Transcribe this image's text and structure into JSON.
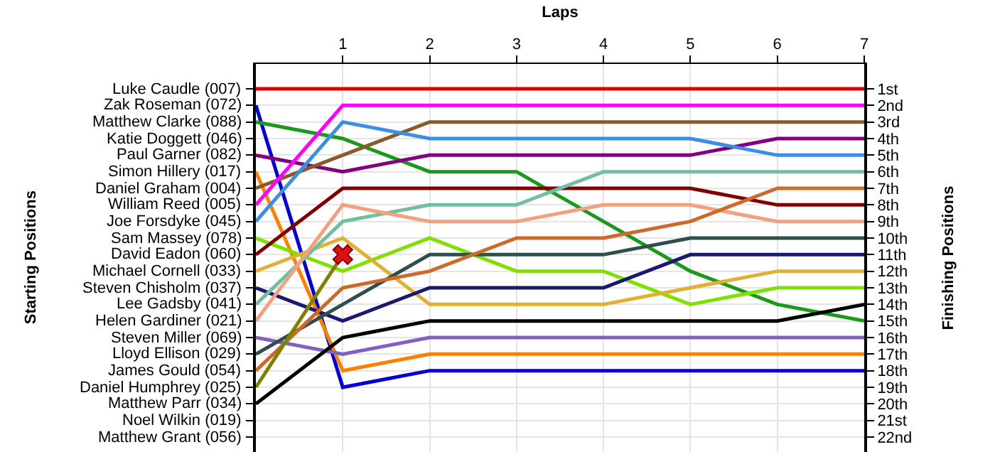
{
  "chart_data": {
    "type": "line",
    "xlabel": "Laps",
    "ylabel": "Finishing Positions",
    "x": [
      0,
      1,
      2,
      3,
      4,
      5,
      6,
      7
    ],
    "xlim": [
      0,
      7
    ],
    "xticks": [
      1,
      2,
      3,
      4,
      5,
      6,
      7
    ],
    "ylim": [
      22.9,
      -0.5
    ],
    "grid": true,
    "marker": "none",
    "line_style": "solid",
    "yticks": [
      {
        "value": 1,
        "label": "1st"
      },
      {
        "value": 2,
        "label": "2nd"
      },
      {
        "value": 3,
        "label": "3rd"
      },
      {
        "value": 4,
        "label": "4th"
      },
      {
        "value": 5,
        "label": "5th"
      },
      {
        "value": 6,
        "label": "6th"
      },
      {
        "value": 7,
        "label": "7th"
      },
      {
        "value": 8,
        "label": "8th"
      },
      {
        "value": 9,
        "label": "9th"
      },
      {
        "value": 10,
        "label": "10th"
      },
      {
        "value": 11,
        "label": "11th"
      },
      {
        "value": 12,
        "label": "12th"
      },
      {
        "value": 13,
        "label": "13th"
      },
      {
        "value": 14,
        "label": "14th"
      },
      {
        "value": 15,
        "label": "15th"
      },
      {
        "value": 16,
        "label": "16th"
      },
      {
        "value": 17,
        "label": "17th"
      },
      {
        "value": 18,
        "label": "18th"
      },
      {
        "value": 19,
        "label": "19th"
      },
      {
        "value": 20,
        "label": "20th"
      },
      {
        "value": 21,
        "label": "21st"
      },
      {
        "value": 22,
        "label": "22nd"
      }
    ],
    "annotations": [
      "Starting Positions",
      "Luke Caudle (007)",
      "Zak Roseman (072)",
      "Matthew Clarke (088)",
      "Katie Doggett (046)",
      "Paul Garner (082)",
      "Simon Hillery (017)",
      "Daniel Graham (004)",
      "William Reed (005)",
      "Joe Forsdyke (045)",
      "Sam Massey (078)",
      "David Eadon (060)",
      "Michael Cornell (033)",
      "Steven Chisholm (037)",
      "Lee Gadsby (041)",
      "Helen Gardiner (021)",
      "Steven Miller (069)",
      "Lloyd Ellison (029)",
      "James Gould (054)",
      "Daniel Humphrey (025)",
      "Matthew Parr (034)",
      "Noel Wilkin (019)",
      "Matthew Grant (056)"
    ],
    "series": [
      {
        "color": "#e00000",
        "values": [
          1,
          1,
          1,
          1,
          1,
          1,
          1,
          1
        ]
      },
      {
        "color": "#0000dd",
        "values": [
          2,
          19,
          18,
          18,
          18,
          18,
          18,
          18
        ]
      },
      {
        "color": "#1a9a1a",
        "values": [
          3,
          4,
          6,
          6,
          9,
          12,
          14,
          15
        ]
      },
      {
        "color": "#800080",
        "values": [
          5,
          6,
          5,
          5,
          5,
          5,
          4,
          4
        ]
      },
      {
        "color": "#ff8000",
        "values": [
          6,
          18,
          17,
          17,
          17,
          17,
          17,
          17
        ]
      },
      {
        "color": "#8b5a2b",
        "values": [
          7,
          5,
          3,
          3,
          3,
          3,
          3,
          3
        ]
      },
      {
        "color": "#ff00ff",
        "values": [
          8,
          2,
          2,
          2,
          2,
          2,
          2,
          2
        ]
      },
      {
        "color": "#3a8ee6",
        "values": [
          9,
          3,
          4,
          4,
          4,
          4,
          5,
          5
        ]
      },
      {
        "color": "#80e000",
        "values": [
          10,
          12,
          10,
          12,
          12,
          14,
          13,
          13
        ]
      },
      {
        "color": "#800000",
        "values": [
          11,
          7,
          7,
          7,
          7,
          7,
          8,
          8
        ]
      },
      {
        "color": "#e0b030",
        "values": [
          12,
          10,
          14,
          14,
          14,
          13,
          12,
          12
        ]
      },
      {
        "color": "#191970",
        "values": [
          13,
          15,
          13,
          13,
          13,
          11,
          11,
          11
        ]
      },
      {
        "color": "#6fbfa0",
        "values": [
          14,
          9,
          8,
          8,
          6,
          6,
          6,
          6
        ]
      },
      {
        "color": "#f4a080",
        "values": [
          15,
          8,
          9,
          9,
          8,
          8,
          9,
          9
        ]
      },
      {
        "color": "#8060c0",
        "values": [
          16,
          17,
          16,
          16,
          16,
          16,
          16,
          16
        ]
      },
      {
        "color": "#2f4f4f",
        "values": [
          17,
          14,
          11,
          11,
          11,
          10,
          10,
          10
        ]
      },
      {
        "color": "#cc6a2a",
        "values": [
          18,
          13,
          12,
          10,
          10,
          9,
          7,
          7
        ]
      },
      {
        "color": "#808000",
        "values": [
          19,
          11,
          null,
          null,
          null,
          null,
          null,
          null
        ]
      },
      {
        "color": "#000000",
        "values": [
          20,
          16,
          15,
          15,
          15,
          15,
          15,
          14
        ]
      },
      {
        "type": "scatter",
        "marker": "cross",
        "color": "#e01010",
        "x": [
          1
        ],
        "values": [
          11
        ]
      }
    ]
  }
}
